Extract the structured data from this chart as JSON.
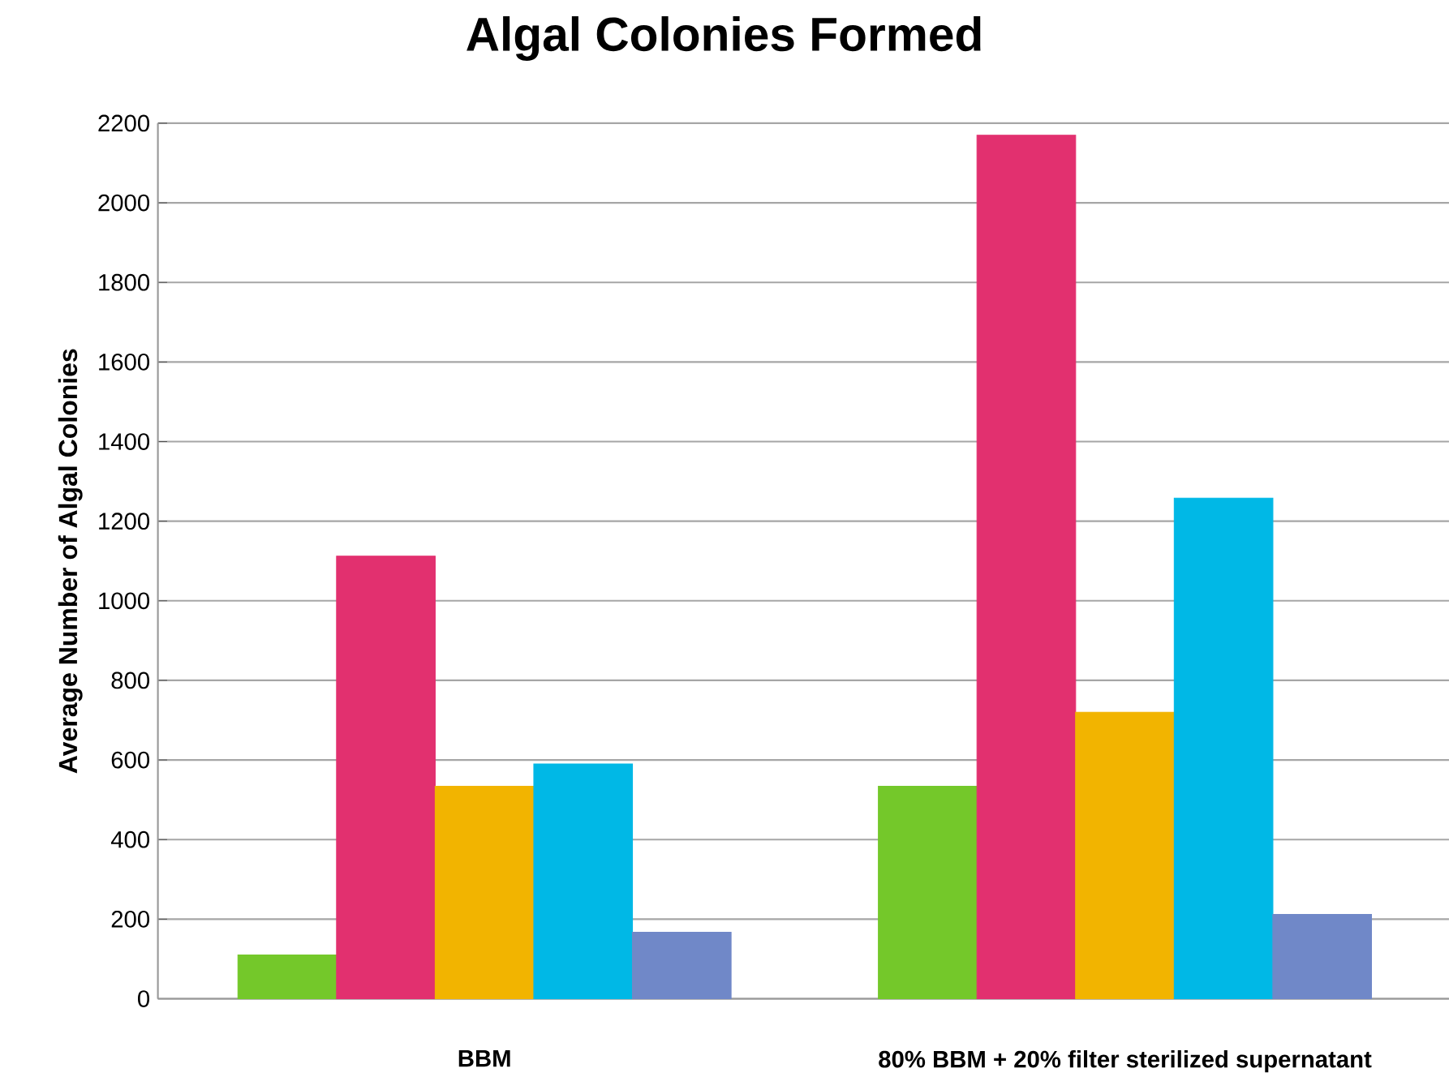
{
  "chart_data": {
    "type": "bar",
    "title": "Algal Colonies Formed",
    "ylabel": "Average Number of Algal Colonies",
    "categories": [
      "BBM",
      "80% BBM + 20% filter sterilized supernatant"
    ],
    "series": [
      {
        "color": "#74c82a",
        "values": [
          110,
          534
        ]
      },
      {
        "color": "#e2306f",
        "values": [
          1112,
          2170
        ]
      },
      {
        "color": "#f2b400",
        "values": [
          534,
          720
        ]
      },
      {
        "color": "#00b8e6",
        "values": [
          590,
          1258
        ]
      },
      {
        "color": "#7088c8",
        "values": [
          167,
          212
        ]
      }
    ],
    "ylim": [
      0,
      2200
    ],
    "yticks": [
      0,
      200,
      400,
      600,
      800,
      1000,
      1200,
      1400,
      1600,
      1800,
      2000,
      2200
    ],
    "grid": "y"
  }
}
